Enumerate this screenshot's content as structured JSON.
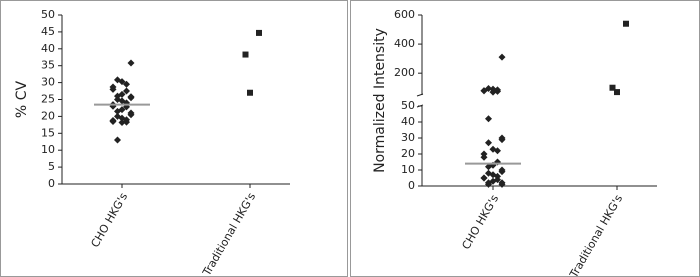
{
  "chart_data": [
    {
      "type": "dot",
      "ylabel": "% CV",
      "categories": [
        "CHO HKG's",
        "Traditional HKG's"
      ],
      "values": [
        [
          35.8,
          30.8,
          30.3,
          29.5,
          28.7,
          28,
          27.5,
          26.5,
          26,
          25.8,
          25.5,
          25,
          24.6,
          24,
          23.5,
          23,
          22.8,
          22,
          21.5,
          21,
          20.5,
          20,
          19.5,
          19,
          18.8,
          18.5,
          18.3,
          18.2,
          13
        ],
        [
          44.7,
          38.3,
          27
        ]
      ],
      "means": [
        23.5,
        null
      ],
      "markers": [
        "diamond",
        "square"
      ],
      "color": "#222222",
      "mean_color": "#999999",
      "ylim": [
        0,
        50
      ],
      "yticks": [
        0,
        5,
        10,
        15,
        20,
        25,
        30,
        35,
        40,
        45,
        50
      ]
    },
    {
      "type": "dot",
      "ylabel": "Normalized Intensity",
      "categories": [
        "CHO HKG's",
        "Traditional HKG's"
      ],
      "values": [
        [
          310,
          95,
          90,
          85,
          80,
          78,
          75,
          70,
          42,
          30,
          29,
          27,
          23,
          22,
          20,
          18,
          15,
          13,
          12,
          10,
          9,
          8,
          7,
          6,
          5,
          5,
          4,
          3,
          2,
          2,
          1,
          1
        ],
        [
          540,
          100,
          70
        ]
      ],
      "means": [
        14,
        null
      ],
      "markers": [
        "diamond",
        "square"
      ],
      "color": "#222222",
      "mean_color": "#999999",
      "ylim": [
        0,
        50
      ],
      "yticks": [
        0,
        10,
        20,
        30,
        40,
        50
      ],
      "break": {
        "ylim": [
          50,
          600
        ],
        "yticks": [
          200,
          400,
          600
        ]
      }
    }
  ]
}
